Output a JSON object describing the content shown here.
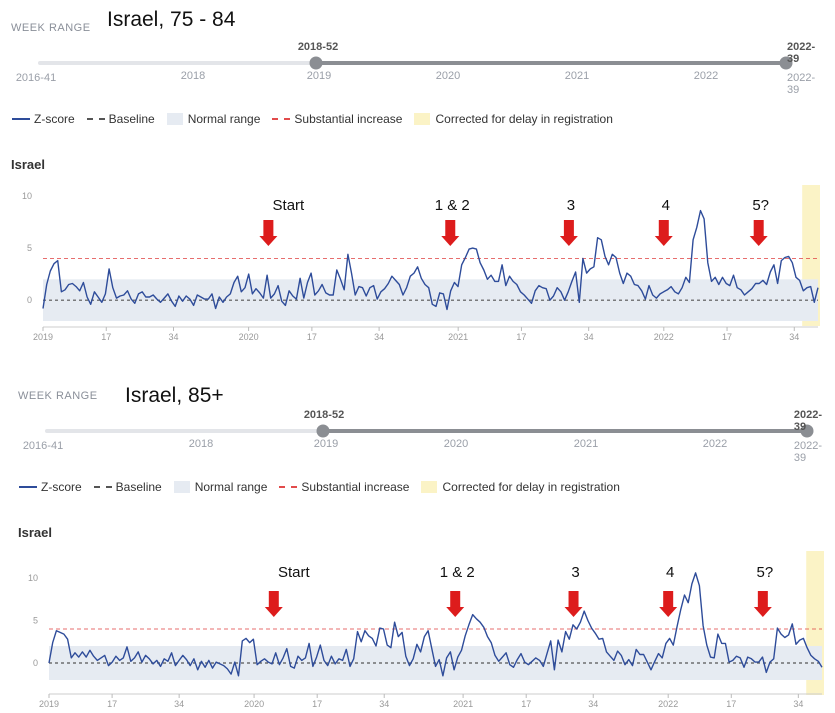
{
  "colors": {
    "zscore": "#2e4c9a",
    "baseline": "#555555",
    "normal_range": "#e6ebf2",
    "substantial": "#e24b4b",
    "corrected": "#fbf3c6",
    "arrow": "#dd1c1c",
    "slider_active": "#8b8e93",
    "slider_inactive": "#e3e5e9"
  },
  "panels": [
    {
      "week_range_label": "WEEK RANGE",
      "title": "Israel, 75 - 84",
      "slider": {
        "start_label": "2016-41",
        "years": [
          "2018",
          "2019",
          "2020",
          "2021",
          "2022"
        ],
        "selected_start": "2018-52",
        "selected_end": "2022-39",
        "end_label": "2022-39"
      },
      "legend": {
        "zscore": "Z-score",
        "baseline": "Baseline",
        "normal": "Normal range",
        "substantial": "Substantial increase",
        "corrected": "Corrected for delay in registration"
      },
      "country": "Israel"
    },
    {
      "week_range_label": "WEEK RANGE",
      "title": "Israel, 85+",
      "slider": {
        "start_label": "2016-41",
        "years": [
          "2018",
          "2019",
          "2020",
          "2021",
          "2022"
        ],
        "selected_start": "2018-52",
        "selected_end": "2022-39",
        "end_label": "2022-39"
      },
      "legend": {
        "zscore": "Z-score",
        "baseline": "Baseline",
        "normal": "Normal range",
        "substantial": "Substantial increase",
        "corrected": "Corrected for delay in registration"
      },
      "country": "Israel"
    }
  ],
  "chart_data": [
    {
      "type": "line",
      "title": "Israel",
      "x_ticks": [
        "2019",
        "17",
        "34",
        "2020",
        "17",
        "34",
        "2021",
        "17",
        "34",
        "2022",
        "17",
        "34"
      ],
      "x_tick_weeks": [
        0,
        16,
        33,
        52,
        68,
        85,
        105,
        121,
        138,
        157,
        173,
        190
      ],
      "xlim": [
        0,
        196
      ],
      "y_ticks": [
        10,
        5,
        0
      ],
      "ylim": [
        -2,
        10
      ],
      "baseline": 0,
      "normal_range": [
        -2,
        2
      ],
      "substantial_increase": 4,
      "corrected_weeks": [
        192,
        196
      ],
      "annotations": [
        {
          "text": "Start",
          "week": 57
        },
        {
          "text": "1 & 2",
          "week": 103
        },
        {
          "text": "3",
          "week": 133
        },
        {
          "text": "4",
          "week": 157
        },
        {
          "text": "5?",
          "week": 181
        }
      ],
      "series": [
        {
          "values": [
            -0.8,
            1.5,
            2.8,
            3.5,
            3.8,
            0.8,
            1,
            1.5,
            1.6,
            1.3,
            0.9,
            1.7,
            0.3,
            -0.4,
            0.8,
            0.3,
            -0.2,
            0.6,
            3,
            1.2,
            0.2,
            0.4,
            0.5,
            0.9,
            0.1,
            -0.3,
            0.6,
            0.8,
            0.3,
            0.3,
            0.5,
            0.1,
            -0.2,
            0.2,
            0.6,
            -0.1,
            -0.6,
            0.4,
            -0.1,
            0.4,
            0.1,
            -0.5,
            0.5,
            0.3,
            0.1,
            0.1,
            0.6,
            -0.8,
            0.3,
            -0.2,
            0.3,
            0.6,
            1.7,
            2.3,
            0.8,
            1.2,
            2.5,
            0.6,
            1.1,
            0.7,
            0.2,
            2.4,
            0.2,
            0.6,
            1.4,
            -0.1,
            -0.5,
            0.9,
            0.4,
            0.1,
            2.1,
            0.2,
            1.7,
            2.6,
            0.5,
            0.9,
            1.5,
            0.7,
            0.5,
            0.5,
            2.9,
            2,
            1,
            4.4,
            2.6,
            0.5,
            1.3,
            1.2,
            0.4,
            1.2,
            1.4,
            0.1,
            0.8,
            1.1,
            1.6,
            2.3,
            1.9,
            1.5,
            0.5,
            1.2,
            2.3,
            2.6,
            3.2,
            2.1,
            1.5,
            1.2,
            -0.4,
            -0.6,
            0.7,
            0.6,
            -0.9,
            0.9,
            1.7,
            1.3,
            3.4,
            4.1,
            4.9,
            5,
            4.9,
            3.6,
            2.9,
            2,
            2.4,
            1.8,
            1.8,
            3.4,
            1.4,
            2.3,
            1.8,
            1.5,
            0.8,
            0.5,
            0.1,
            -0.3,
            0.9,
            1.4,
            1.2,
            1.1,
            0,
            0.4,
            1.2,
            0.8,
            0,
            0.8,
            1.8,
            2.7,
            -0.2,
            4,
            2.6,
            3,
            3.2,
            6,
            5.8,
            4.2,
            3.4,
            4.4,
            4.1,
            2.6,
            1.6,
            2.6,
            2.3,
            1.5,
            1.4,
            0.9,
            0.1,
            1.4,
            0.5,
            0.2,
            0.6,
            0.8,
            1,
            1.3,
            0.8,
            0.6,
            1.2,
            2.2,
            1.7,
            5.8,
            7,
            8.6,
            7.8,
            3.6,
            1.8,
            2.2,
            1.5,
            2.2,
            1.6,
            1.4,
            2.4,
            1.2,
            1,
            0.5,
            0.8,
            1.1,
            1.6,
            1.6,
            1.9,
            1.5,
            2.7,
            3.4,
            1.6,
            3.8,
            4.1,
            4.2,
            3.6,
            2.2,
            1.9,
            0.9,
            1.2,
            1.3,
            -0.2,
            1.2
          ]
        }
      ]
    },
    {
      "type": "line",
      "title": "Israel",
      "x_ticks": [
        "2019",
        "17",
        "34",
        "2020",
        "17",
        "34",
        "2021",
        "17",
        "34",
        "2022",
        "17",
        "34"
      ],
      "x_tick_weeks": [
        0,
        16,
        33,
        52,
        68,
        85,
        105,
        121,
        138,
        157,
        173,
        190
      ],
      "xlim": [
        0,
        196
      ],
      "y_ticks": [
        10,
        5,
        0
      ],
      "ylim": [
        -2,
        10
      ],
      "baseline": 0,
      "normal_range": [
        -2,
        2
      ],
      "substantial_increase": 4,
      "corrected_weeks": [
        192,
        196
      ],
      "annotations": [
        {
          "text": "Start",
          "week": 57
        },
        {
          "text": "1 & 2",
          "week": 103
        },
        {
          "text": "3",
          "week": 133
        },
        {
          "text": "4",
          "week": 157
        },
        {
          "text": "5?",
          "week": 181
        }
      ],
      "series": [
        {
          "values": [
            0,
            2.4,
            3.8,
            3.6,
            3.4,
            2.8,
            0.6,
            1.2,
            0.7,
            1.3,
            0.7,
            1.5,
            0.8,
            0.3,
            0.6,
            0.9,
            -0.3,
            0.1,
            0.8,
            0.3,
            0.6,
            1.9,
            0.2,
            0.6,
            1.3,
            0.1,
            0.9,
            0.5,
            -0.1,
            0.3,
            -0.4,
            0.5,
            0.2,
            1.2,
            -0.3,
            0.3,
            0.9,
            0.4,
            -0.3,
            0.5,
            -0.8,
            0.2,
            -0.5,
            0.3,
            -0.6,
            0.1,
            -0.1,
            -0.3,
            -0.7,
            -1.3,
            0.1,
            -1.5,
            2.6,
            2.9,
            2.4,
            2.8,
            -0.2,
            0.2,
            0.5,
            0.1,
            -0.1,
            1.2,
            -0.2,
            0.6,
            1.7,
            -0.4,
            -0.6,
            0.8,
            0.3,
            0.6,
            2.3,
            -0.4,
            0.7,
            2.1,
            0.3,
            -0.3,
            0.8,
            -0.1,
            0.5,
            0.3,
            1.6,
            -0.4,
            0.5,
            3.7,
            2.5,
            3.8,
            3.2,
            2.9,
            2,
            4.1,
            4,
            2.1,
            1.8,
            4.8,
            3.1,
            3.6,
            0.8,
            -0.3,
            0.5,
            2.2,
            1.3,
            3.1,
            3.8,
            1.7,
            -0.4,
            0.4,
            -1.5,
            0.6,
            1.3,
            -0.8,
            0.7,
            1.5,
            3.2,
            4.5,
            5.7,
            5.2,
            4.8,
            4.2,
            3.1,
            2.4,
            0.9,
            0.2,
            0.7,
            1.2,
            -0.2,
            -0.5,
            0.4,
            1.1,
            0.1,
            -0.2,
            0.2,
            0.6,
            0.3,
            -0.4,
            1.1,
            2.6,
            -0.8,
            2.7,
            1.3,
            3.7,
            2.8,
            4.5,
            4,
            4.8,
            6.1,
            5,
            4.1,
            3.5,
            2.8,
            2.9,
            1.3,
            0.8,
            0.3,
            1.4,
            0.9,
            -0.2,
            0.4,
            -0.3,
            1.6,
            1,
            1,
            0.1,
            -0.8,
            0.2,
            1.1,
            0.6,
            2.3,
            2.9,
            2.1,
            4.3,
            6.3,
            8,
            7.1,
            9.3,
            10.6,
            9.1,
            4.4,
            2.1,
            0.7,
            0.6,
            3.4,
            2.3,
            2.3,
            0.1,
            0.3,
            0.8,
            0.6,
            -0.5,
            0.7,
            0.5,
            0.1,
            0.1,
            0.7,
            -1.1,
            0.1,
            0.5,
            4.1,
            3.4,
            3,
            3.3,
            4.6,
            2.2,
            2.7,
            2.9,
            1.8,
            0.9,
            0.5,
            0.2,
            -0.5
          ]
        }
      ]
    }
  ]
}
